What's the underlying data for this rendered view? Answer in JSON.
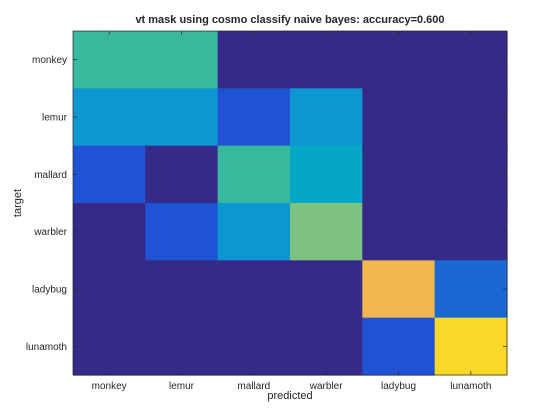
{
  "chart_data": {
    "type": "heatmap",
    "title": "vt mask using cosmo classify naive bayes: accuracy=0.600",
    "xlabel": "predicted",
    "ylabel": "target",
    "x_categories": [
      "monkey",
      "lemur",
      "mallard",
      "warbler",
      "ladybug",
      "lunamoth"
    ],
    "y_categories": [
      "monkey",
      "lemur",
      "mallard",
      "warbler",
      "ladybug",
      "lunamoth"
    ],
    "values": [
      [
        0.5,
        0.5,
        0.0,
        0.0,
        0.0,
        0.0
      ],
      [
        0.3,
        0.3,
        0.15,
        0.3,
        0.0,
        0.0
      ],
      [
        0.15,
        0.0,
        0.5,
        0.35,
        0.0,
        0.0
      ],
      [
        0.0,
        0.15,
        0.3,
        0.6,
        0.0,
        0.0
      ],
      [
        0.0,
        0.0,
        0.0,
        0.0,
        0.85,
        0.2
      ],
      [
        0.0,
        0.0,
        0.0,
        0.0,
        0.15,
        1.0
      ]
    ],
    "colormap": "parula",
    "grid": false
  }
}
